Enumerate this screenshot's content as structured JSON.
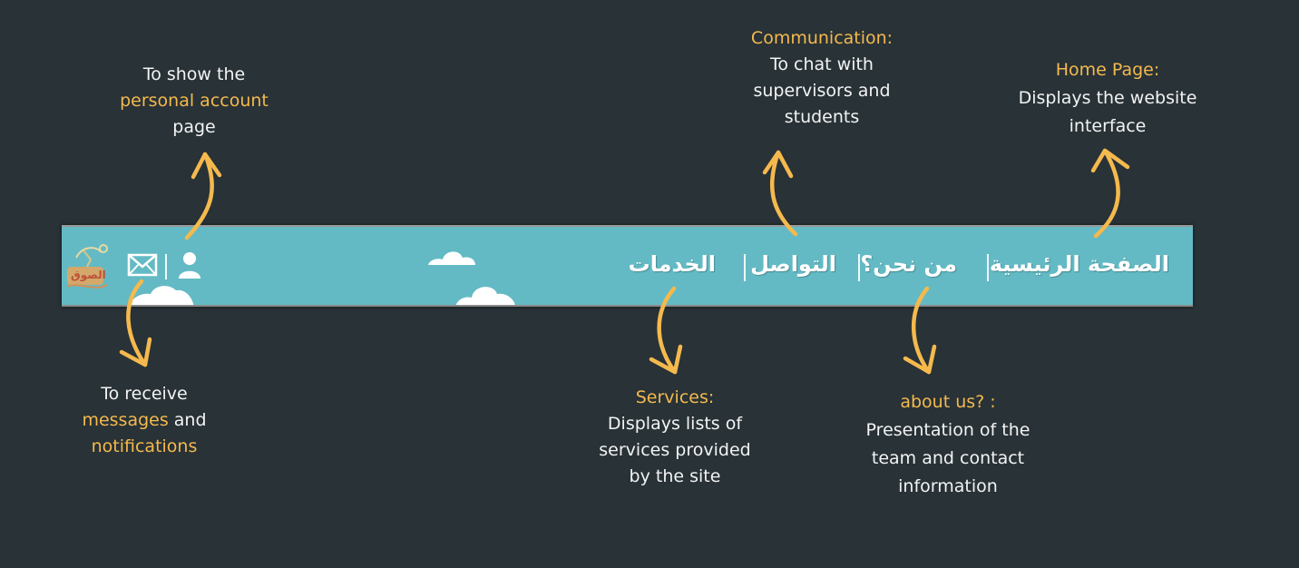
{
  "nav": {
    "home": "الصفحة الرئيسية",
    "about": "من نحن؟",
    "contact": "التواصل",
    "services": "الخدمات",
    "logo_text": "الصوق"
  },
  "icons": {
    "account": "user-icon",
    "messages": "envelope-icon",
    "logo": "site-logo"
  },
  "annotations": {
    "account": {
      "line1": "To show the",
      "highlight": "personal account",
      "line3": "page"
    },
    "communication": {
      "title": "Communication:",
      "line1": "To chat with",
      "line2": "supervisors and",
      "line3": "students"
    },
    "home": {
      "title": "Home Page:",
      "line1": "Displays the website",
      "line2": "interface"
    },
    "messages": {
      "line1": "To receive",
      "highlight1": "messages",
      "and": " and",
      "highlight2": "notifications"
    },
    "services": {
      "title": "Services:",
      "line1": "Displays lists of",
      "line2": "services provided",
      "line3": "by the site"
    },
    "about": {
      "title": "about us? :",
      "line1": "Presentation of the",
      "line2": "team and contact",
      "line3": "information"
    }
  },
  "colors": {
    "background": "#283237",
    "navbar": "#63bac4",
    "accent": "#f5b94d",
    "text": "#f3f3f3"
  }
}
